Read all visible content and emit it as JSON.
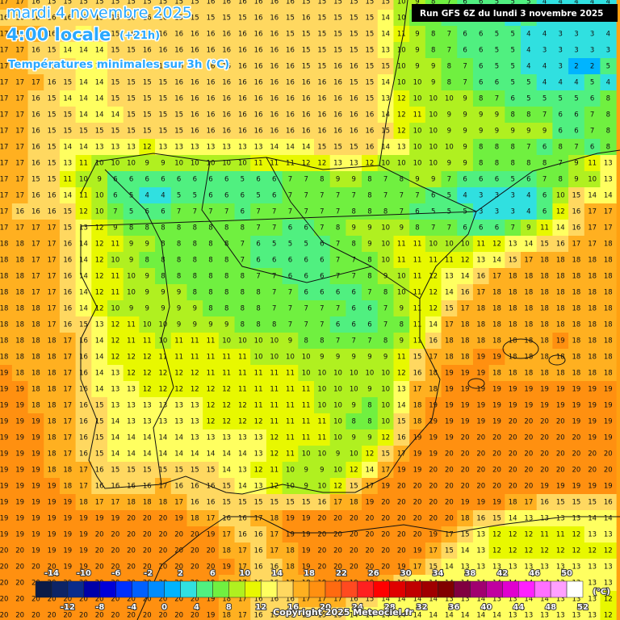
{
  "header": {
    "date": "mardi 4 novembre 2025",
    "time": "4:00 locale",
    "offset": "(+21h)",
    "subtitle": "Températures minimales sur 3h (°C)"
  },
  "run": "Run GFS 6Z du lundi 3 novembre 2025",
  "copyright": "Copyright 2025 Meteociel.fr",
  "legend": {
    "unit": "(°C)",
    "ticks": [
      -14,
      -12,
      -10,
      -8,
      -6,
      -4,
      -2,
      0,
      2,
      4,
      6,
      8,
      10,
      12,
      14,
      16,
      18,
      20,
      22,
      24,
      26,
      28,
      30,
      32,
      34,
      36,
      38,
      40,
      42,
      44,
      46,
      48,
      50,
      52
    ],
    "colors": [
      "#0b1b47",
      "#0d2466",
      "#0a2c8c",
      "#0000a8",
      "#0000d8",
      "#0030ff",
      "#0060ff",
      "#008cff",
      "#00b4ff",
      "#30e0e0",
      "#50f080",
      "#70f040",
      "#b0f020",
      "#e8f800",
      "#ffff60",
      "#ffd860",
      "#ffb020",
      "#ff9010",
      "#ff6a10",
      "#ff4a20",
      "#ff2020",
      "#ff0000",
      "#e00000",
      "#c00000",
      "#a00000",
      "#800000",
      "#800040",
      "#a00070",
      "#c000a0",
      "#e000d0",
      "#ff20ff",
      "#ff70ff",
      "#ffa0ff",
      "#ffffff"
    ]
  },
  "map": {
    "grid": [
      [
        17,
        17,
        16,
        15,
        15,
        15,
        15,
        15,
        15,
        15,
        15,
        15,
        15,
        16,
        16,
        16,
        16,
        16,
        16,
        15,
        15,
        15,
        15,
        15,
        15,
        10,
        9,
        8,
        7,
        6,
        6,
        5,
        5,
        5,
        4,
        4,
        4,
        4,
        4
      ],
      [
        16,
        16,
        16,
        16,
        16,
        15,
        15,
        16,
        16,
        16,
        16,
        15,
        15,
        15,
        15,
        15,
        16,
        16,
        15,
        16,
        15,
        15,
        15,
        15,
        14,
        10,
        8,
        7,
        6,
        6,
        6,
        5,
        4,
        5,
        4,
        4,
        4,
        4,
        4
      ],
      [
        17,
        17,
        17,
        16,
        15,
        14,
        15,
        15,
        16,
        16,
        16,
        16,
        16,
        16,
        16,
        16,
        16,
        16,
        15,
        15,
        15,
        15,
        15,
        15,
        14,
        11,
        9,
        8,
        7,
        6,
        6,
        5,
        5,
        4,
        4,
        3,
        3,
        3,
        4
      ],
      [
        17,
        17,
        16,
        15,
        14,
        14,
        14,
        15,
        15,
        16,
        16,
        16,
        16,
        16,
        16,
        16,
        16,
        16,
        16,
        15,
        15,
        15,
        15,
        15,
        13,
        10,
        9,
        8,
        7,
        6,
        6,
        5,
        5,
        4,
        3,
        3,
        3,
        3,
        3
      ],
      [
        17,
        17,
        16,
        15,
        15,
        14,
        14,
        15,
        15,
        15,
        16,
        16,
        16,
        16,
        16,
        16,
        16,
        16,
        16,
        15,
        15,
        16,
        16,
        15,
        15,
        10,
        9,
        9,
        8,
        7,
        6,
        5,
        5,
        4,
        4,
        3,
        2,
        2,
        5
      ],
      [
        17,
        17,
        17,
        16,
        15,
        14,
        14,
        15,
        15,
        15,
        15,
        16,
        16,
        16,
        16,
        16,
        16,
        16,
        16,
        16,
        16,
        16,
        15,
        15,
        14,
        10,
        10,
        9,
        8,
        7,
        6,
        6,
        5,
        5,
        4,
        4,
        4,
        5,
        4
      ],
      [
        17,
        17,
        16,
        15,
        14,
        14,
        14,
        15,
        15,
        15,
        15,
        16,
        16,
        16,
        16,
        16,
        16,
        16,
        16,
        16,
        16,
        16,
        16,
        15,
        13,
        12,
        10,
        10,
        10,
        9,
        8,
        7,
        6,
        5,
        5,
        5,
        5,
        6,
        8
      ],
      [
        17,
        17,
        16,
        15,
        15,
        14,
        14,
        14,
        15,
        15,
        15,
        15,
        16,
        16,
        16,
        16,
        16,
        16,
        16,
        16,
        16,
        16,
        16,
        16,
        14,
        12,
        11,
        10,
        9,
        9,
        9,
        9,
        8,
        8,
        7,
        6,
        6,
        7,
        8
      ],
      [
        17,
        17,
        16,
        15,
        15,
        15,
        15,
        15,
        15,
        15,
        15,
        15,
        16,
        16,
        16,
        16,
        16,
        16,
        16,
        16,
        16,
        16,
        16,
        16,
        15,
        12,
        10,
        10,
        9,
        9,
        9,
        9,
        9,
        9,
        9,
        6,
        6,
        7,
        8
      ],
      [
        17,
        17,
        16,
        15,
        14,
        14,
        13,
        13,
        13,
        12,
        13,
        13,
        13,
        13,
        13,
        13,
        13,
        14,
        14,
        14,
        15,
        15,
        15,
        16,
        14,
        13,
        10,
        10,
        10,
        9,
        8,
        8,
        8,
        7,
        6,
        8,
        7,
        6,
        8
      ],
      [
        17,
        17,
        16,
        15,
        13,
        11,
        10,
        10,
        10,
        9,
        9,
        10,
        10,
        10,
        10,
        10,
        11,
        11,
        11,
        12,
        12,
        13,
        13,
        12,
        10,
        10,
        10,
        10,
        9,
        9,
        8,
        8,
        8,
        8,
        8,
        7,
        9,
        11,
        13
      ],
      [
        17,
        17,
        15,
        15,
        11,
        10,
        9,
        6,
        6,
        6,
        6,
        6,
        6,
        6,
        6,
        5,
        6,
        6,
        7,
        7,
        8,
        9,
        9,
        8,
        7,
        8,
        9,
        9,
        7,
        6,
        6,
        6,
        5,
        6,
        7,
        8,
        9,
        10,
        13
      ],
      [
        17,
        17,
        16,
        16,
        14,
        11,
        10,
        6,
        5,
        4,
        4,
        5,
        5,
        6,
        6,
        6,
        5,
        6,
        7,
        7,
        7,
        7,
        7,
        8,
        7,
        7,
        7,
        6,
        5,
        4,
        3,
        3,
        3,
        4,
        6,
        10,
        15,
        14,
        14
      ],
      [
        17,
        16,
        16,
        16,
        15,
        12,
        10,
        7,
        5,
        6,
        6,
        7,
        7,
        7,
        7,
        6,
        7,
        7,
        7,
        7,
        7,
        7,
        8,
        8,
        8,
        7,
        6,
        5,
        5,
        5,
        3,
        3,
        3,
        4,
        6,
        12,
        16,
        17,
        17
      ],
      [
        17,
        17,
        17,
        17,
        15,
        13,
        12,
        9,
        8,
        8,
        8,
        8,
        8,
        8,
        8,
        8,
        7,
        7,
        6,
        6,
        7,
        8,
        9,
        9,
        10,
        9,
        8,
        7,
        7,
        6,
        6,
        6,
        7,
        9,
        11,
        14,
        16,
        17,
        17
      ],
      [
        18,
        18,
        17,
        17,
        16,
        14,
        12,
        11,
        9,
        9,
        8,
        8,
        8,
        8,
        8,
        7,
        6,
        5,
        5,
        5,
        6,
        7,
        8,
        9,
        10,
        11,
        11,
        10,
        10,
        10,
        11,
        12,
        13,
        14,
        15,
        16,
        17,
        17,
        18
      ],
      [
        18,
        18,
        17,
        17,
        16,
        14,
        12,
        10,
        9,
        8,
        8,
        8,
        8,
        8,
        8,
        7,
        6,
        6,
        6,
        6,
        6,
        7,
        7,
        8,
        10,
        11,
        11,
        11,
        11,
        12,
        13,
        14,
        15,
        17,
        18,
        18,
        18,
        18,
        18
      ],
      [
        18,
        18,
        17,
        17,
        16,
        14,
        12,
        11,
        10,
        9,
        8,
        8,
        8,
        8,
        8,
        8,
        7,
        7,
        6,
        6,
        6,
        7,
        7,
        8,
        9,
        10,
        11,
        12,
        13,
        14,
        16,
        17,
        18,
        18,
        18,
        18,
        18,
        18,
        18
      ],
      [
        18,
        18,
        17,
        17,
        16,
        14,
        12,
        11,
        10,
        9,
        9,
        9,
        8,
        8,
        8,
        8,
        8,
        7,
        7,
        6,
        6,
        6,
        6,
        7,
        8,
        10,
        11,
        12,
        14,
        16,
        17,
        18,
        18,
        18,
        18,
        18,
        18,
        18,
        18
      ],
      [
        18,
        18,
        18,
        17,
        16,
        14,
        12,
        10,
        9,
        9,
        9,
        9,
        9,
        8,
        8,
        8,
        8,
        7,
        7,
        7,
        7,
        7,
        6,
        6,
        7,
        9,
        11,
        12,
        15,
        17,
        18,
        18,
        18,
        18,
        18,
        18,
        18,
        18,
        18
      ],
      [
        18,
        18,
        18,
        17,
        16,
        15,
        13,
        12,
        11,
        10,
        10,
        9,
        9,
        9,
        9,
        8,
        8,
        8,
        7,
        7,
        7,
        6,
        6,
        6,
        7,
        8,
        11,
        14,
        17,
        18,
        18,
        18,
        18,
        18,
        18,
        18,
        18,
        18,
        18
      ],
      [
        18,
        18,
        18,
        18,
        17,
        16,
        14,
        12,
        11,
        11,
        10,
        11,
        11,
        11,
        10,
        10,
        10,
        10,
        9,
        8,
        8,
        7,
        7,
        7,
        8,
        9,
        11,
        16,
        18,
        18,
        18,
        18,
        18,
        18,
        18,
        19,
        18,
        18,
        18
      ],
      [
        18,
        18,
        18,
        18,
        17,
        16,
        14,
        12,
        12,
        12,
        11,
        11,
        11,
        11,
        11,
        11,
        10,
        10,
        10,
        10,
        9,
        9,
        9,
        9,
        9,
        11,
        15,
        17,
        18,
        18,
        19,
        19,
        18,
        18,
        18,
        18,
        18,
        18,
        18
      ],
      [
        19,
        18,
        18,
        18,
        17,
        16,
        14,
        13,
        12,
        12,
        12,
        12,
        12,
        11,
        11,
        11,
        11,
        11,
        11,
        10,
        10,
        10,
        10,
        10,
        10,
        12,
        16,
        18,
        19,
        19,
        19,
        18,
        18,
        18,
        18,
        18,
        18,
        18,
        18
      ],
      [
        19,
        19,
        18,
        18,
        17,
        16,
        14,
        13,
        13,
        12,
        12,
        12,
        12,
        12,
        12,
        11,
        11,
        11,
        11,
        11,
        10,
        10,
        10,
        9,
        10,
        13,
        17,
        18,
        19,
        19,
        19,
        19,
        19,
        19,
        19,
        19,
        19,
        19,
        19
      ],
      [
        19,
        19,
        18,
        18,
        17,
        16,
        15,
        13,
        13,
        13,
        13,
        13,
        13,
        12,
        12,
        12,
        11,
        11,
        11,
        11,
        10,
        10,
        9,
        8,
        10,
        14,
        18,
        19,
        19,
        19,
        19,
        19,
        19,
        19,
        19,
        19,
        19,
        19,
        19
      ],
      [
        19,
        19,
        19,
        18,
        17,
        16,
        15,
        14,
        13,
        13,
        13,
        13,
        13,
        12,
        12,
        12,
        12,
        11,
        11,
        11,
        11,
        10,
        8,
        8,
        10,
        15,
        18,
        19,
        19,
        19,
        19,
        19,
        20,
        20,
        20,
        20,
        19,
        19,
        19
      ],
      [
        19,
        19,
        19,
        18,
        17,
        16,
        15,
        14,
        14,
        14,
        14,
        14,
        13,
        13,
        13,
        13,
        13,
        12,
        11,
        11,
        11,
        10,
        9,
        9,
        12,
        16,
        19,
        19,
        19,
        20,
        20,
        20,
        20,
        20,
        20,
        20,
        20,
        19,
        19
      ],
      [
        19,
        19,
        19,
        18,
        17,
        16,
        15,
        14,
        14,
        14,
        14,
        14,
        14,
        14,
        14,
        14,
        13,
        12,
        11,
        10,
        10,
        9,
        10,
        12,
        15,
        17,
        19,
        19,
        20,
        20,
        20,
        20,
        20,
        20,
        20,
        20,
        20,
        20,
        20
      ],
      [
        19,
        19,
        19,
        18,
        18,
        17,
        16,
        15,
        15,
        15,
        15,
        15,
        15,
        15,
        14,
        13,
        12,
        11,
        10,
        9,
        9,
        10,
        12,
        14,
        17,
        19,
        19,
        20,
        20,
        20,
        20,
        20,
        20,
        20,
        20,
        20,
        20,
        20,
        20
      ],
      [
        19,
        19,
        19,
        19,
        18,
        17,
        16,
        16,
        16,
        16,
        17,
        16,
        16,
        16,
        15,
        14,
        13,
        12,
        10,
        9,
        10,
        12,
        15,
        17,
        19,
        20,
        20,
        20,
        20,
        20,
        20,
        20,
        20,
        20,
        19,
        19,
        19,
        19,
        19
      ],
      [
        19,
        19,
        19,
        19,
        19,
        18,
        17,
        17,
        18,
        18,
        18,
        17,
        16,
        16,
        15,
        15,
        15,
        15,
        15,
        15,
        16,
        17,
        18,
        19,
        20,
        20,
        20,
        20,
        20,
        19,
        19,
        19,
        18,
        17,
        16,
        15,
        15,
        15,
        16
      ],
      [
        19,
        19,
        19,
        19,
        19,
        19,
        19,
        19,
        20,
        20,
        20,
        19,
        18,
        17,
        16,
        16,
        17,
        18,
        19,
        19,
        20,
        20,
        20,
        20,
        20,
        20,
        20,
        20,
        20,
        18,
        16,
        15,
        14,
        13,
        13,
        13,
        13,
        14,
        14
      ],
      [
        19,
        19,
        19,
        19,
        19,
        19,
        20,
        20,
        20,
        20,
        20,
        20,
        20,
        19,
        17,
        16,
        16,
        17,
        19,
        19,
        20,
        20,
        20,
        20,
        20,
        20,
        20,
        19,
        17,
        15,
        13,
        12,
        12,
        12,
        11,
        11,
        12,
        13,
        13
      ],
      [
        20,
        20,
        19,
        19,
        19,
        19,
        20,
        20,
        20,
        20,
        20,
        20,
        20,
        20,
        18,
        17,
        16,
        17,
        18,
        19,
        20,
        20,
        20,
        20,
        20,
        20,
        19,
        17,
        15,
        14,
        13,
        12,
        12,
        12,
        12,
        12,
        12,
        12,
        12
      ],
      [
        20,
        20,
        20,
        20,
        19,
        19,
        20,
        20,
        20,
        20,
        20,
        20,
        20,
        20,
        19,
        17,
        16,
        16,
        18,
        19,
        20,
        20,
        20,
        20,
        20,
        19,
        17,
        15,
        14,
        13,
        13,
        13,
        13,
        13,
        13,
        13,
        13,
        13,
        13
      ],
      [
        20,
        20,
        20,
        20,
        20,
        20,
        20,
        20,
        20,
        20,
        20,
        20,
        20,
        19,
        18,
        17,
        16,
        16,
        17,
        18,
        19,
        19,
        19,
        19,
        18,
        16,
        14,
        14,
        14,
        14,
        14,
        14,
        14,
        14,
        14,
        13,
        13,
        13,
        13
      ],
      [
        20,
        20,
        20,
        20,
        20,
        20,
        20,
        20,
        20,
        20,
        20,
        20,
        20,
        19,
        18,
        17,
        16,
        16,
        16,
        17,
        17,
        17,
        16,
        15,
        14,
        14,
        14,
        14,
        13,
        13,
        14,
        13,
        13,
        14,
        14,
        13,
        13,
        13,
        12
      ],
      [
        20,
        20,
        20,
        20,
        20,
        20,
        20,
        20,
        20,
        20,
        20,
        20,
        20,
        19,
        18,
        17,
        16,
        15,
        15,
        15,
        15,
        15,
        14,
        14,
        14,
        14,
        14,
        14,
        14,
        14,
        14,
        14,
        13,
        13,
        13,
        13,
        13,
        13,
        12
      ]
    ]
  }
}
